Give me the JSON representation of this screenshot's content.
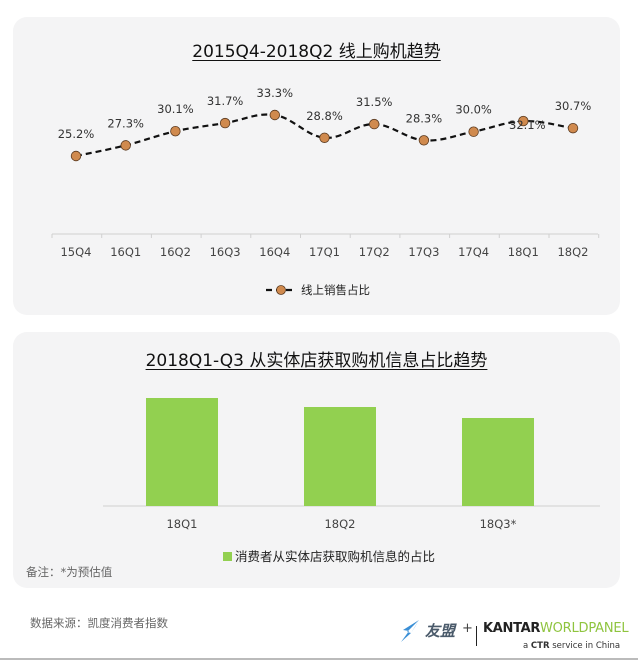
{
  "chart_data": [
    {
      "type": "line",
      "title": "2015Q4-2018Q2  线上购机趋势",
      "categories": [
        "15Q4",
        "16Q1",
        "16Q2",
        "16Q3",
        "16Q4",
        "17Q1",
        "17Q2",
        "17Q3",
        "17Q4",
        "18Q1",
        "18Q2"
      ],
      "series": [
        {
          "name": "线上销售占比",
          "values": [
            25.2,
            27.3,
            30.1,
            31.7,
            33.3,
            28.8,
            31.5,
            28.3,
            30.0,
            32.1,
            30.7
          ],
          "labels": [
            "25.2%",
            "27.3%",
            "30.1%",
            "31.7%",
            "33.3%",
            "28.8%",
            "31.5%",
            "28.3%",
            "30.0%",
            "32.1%",
            "30.7%"
          ],
          "line_style": "dashed",
          "line_color": "#111111",
          "marker": "circle",
          "marker_color": "#d08a4e"
        }
      ],
      "xlabel": "",
      "ylabel": "",
      "grid": false,
      "legend_position": "bottom"
    },
    {
      "type": "bar",
      "title": "2018Q1-Q3  从实体店获取购机信息占比趋势",
      "categories": [
        "18Q1",
        "18Q2",
        "18Q3*"
      ],
      "series": [
        {
          "name": "消费者从实体店获取购机信息的占比",
          "values": [
            108,
            99,
            88
          ],
          "color": "#92d050"
        }
      ],
      "value_note": "relative bar heights in px (no data labels shown)",
      "xlabel": "",
      "ylabel": "",
      "grid": false,
      "legend_position": "bottom"
    }
  ],
  "card1": {
    "title": "2015Q4-2018Q2  线上购机趋势",
    "legend_label": "线上销售占比"
  },
  "card2": {
    "title": "2018Q1-Q3  从实体店获取购机信息占比趋势",
    "legend_label": "消费者从实体店获取购机信息的占比",
    "note": "备注：*为预估值"
  },
  "footer": {
    "source": "数据来源：凯度消费者指数",
    "logo_youmeng": "友盟",
    "logo_plus": "+",
    "logo_kantar": "KANTAR",
    "logo_worldpanel": "WORLDPANEL",
    "logo_ctr_prefix": "a ",
    "logo_ctr_bold": "CTR",
    "logo_ctr_suffix": " service in China"
  },
  "colors": {
    "card_bg": "#f4f4f5",
    "marker": "#d08a4e",
    "bar": "#92d050",
    "worldpanel": "#8fc43f"
  }
}
